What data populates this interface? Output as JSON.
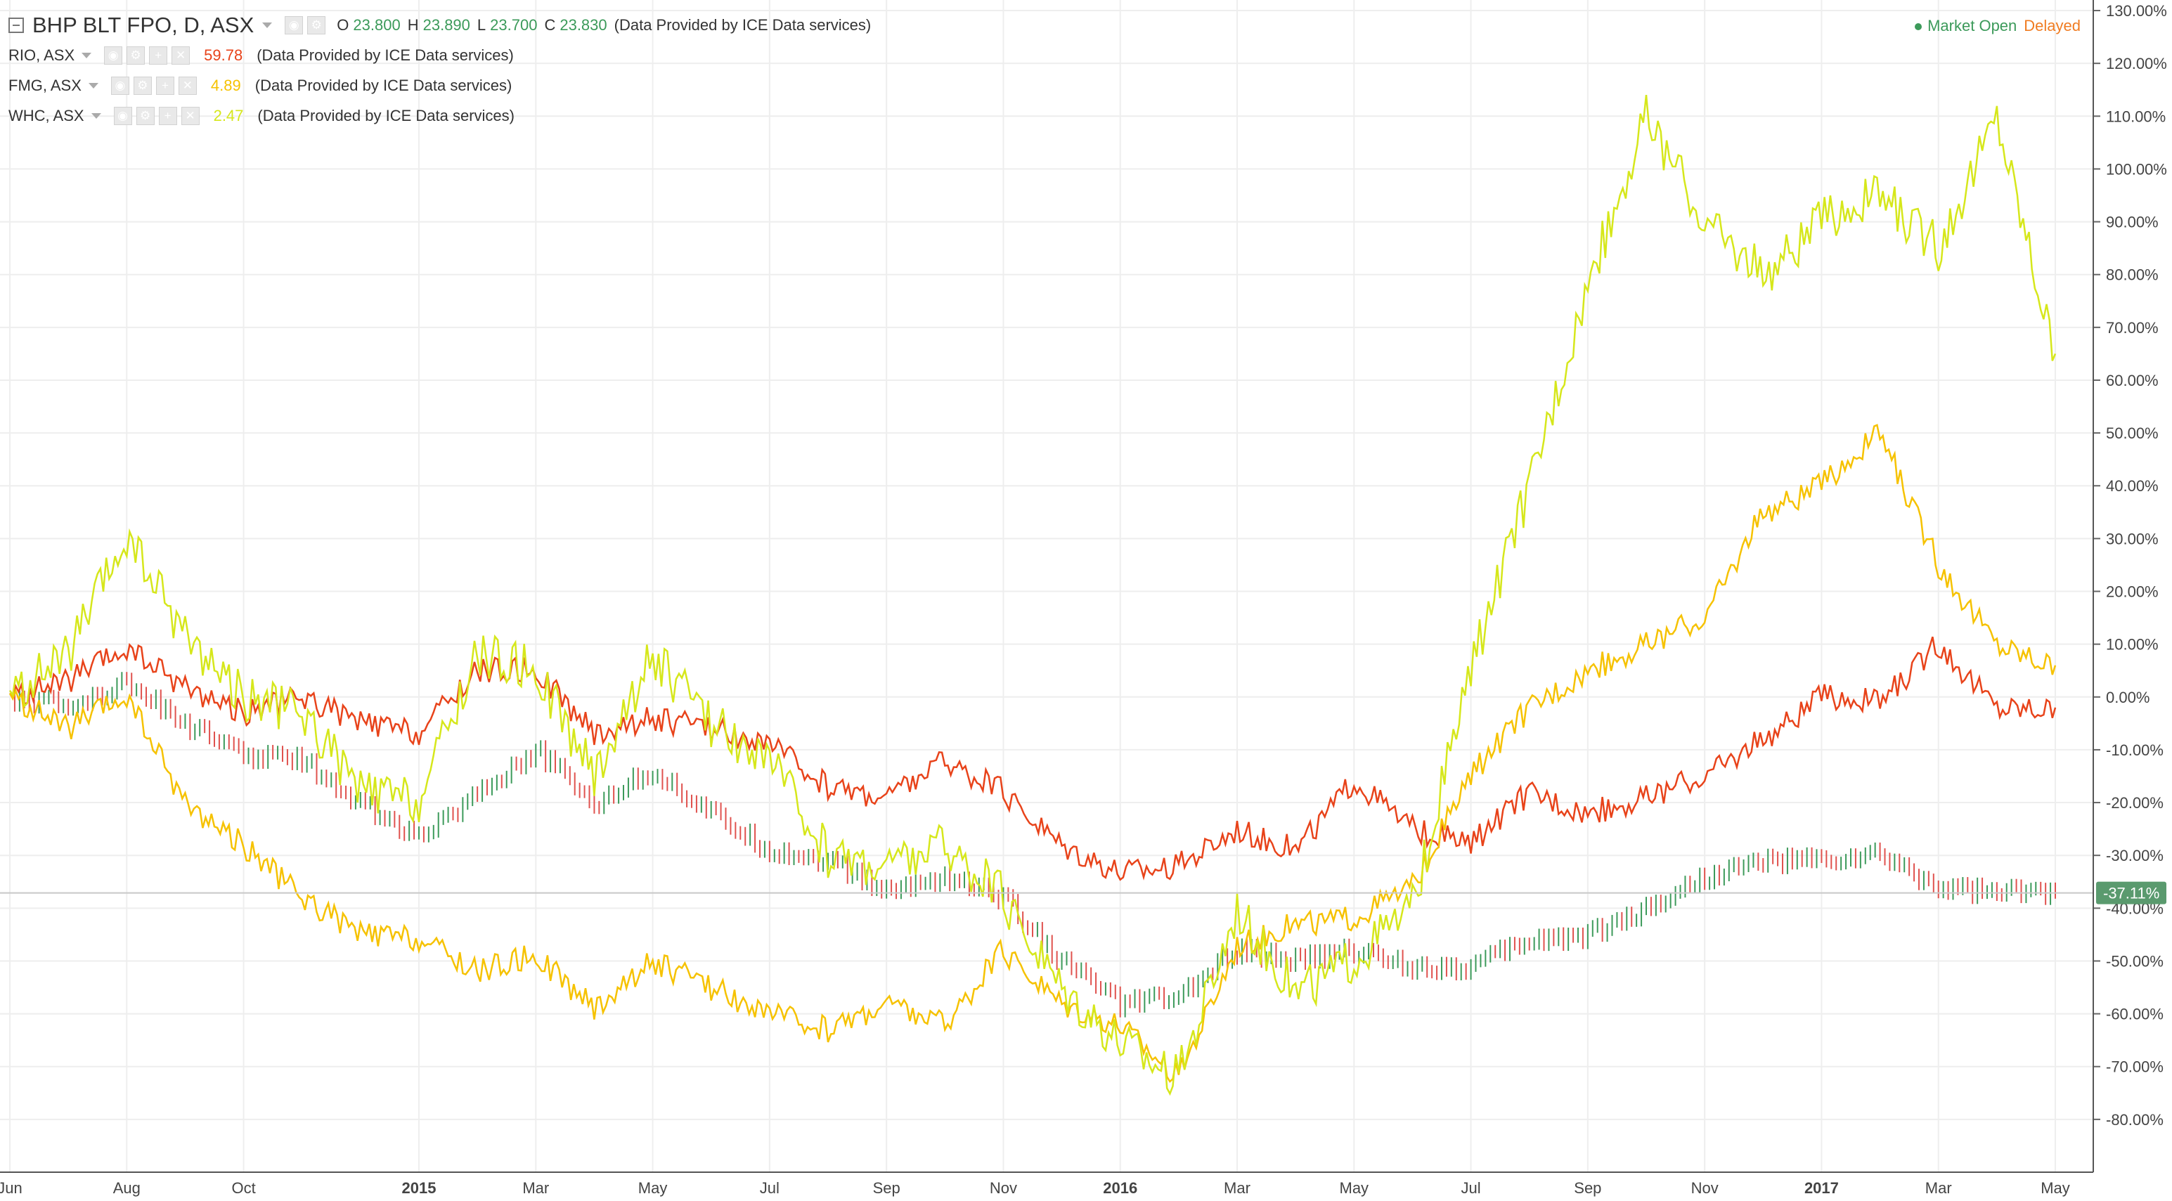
{
  "header": {
    "main_symbol": "BHP BLT FPO, D, ASX",
    "ohlc": [
      {
        "key": "O",
        "value": "23.800"
      },
      {
        "key": "H",
        "value": "23.890"
      },
      {
        "key": "L",
        "value": "23.700"
      },
      {
        "key": "C",
        "value": "23.830"
      }
    ],
    "provider": "(Data Provided by ICE Data services)"
  },
  "comparisons": [
    {
      "symbol": "RIO, ASX",
      "price": "59.78",
      "color": "#e8431a",
      "provider": "(Data Provided by ICE Data services)"
    },
    {
      "symbol": "FMG, ASX",
      "price": "4.89",
      "color": "#f6c200",
      "provider": "(Data Provided by ICE Data services)"
    },
    {
      "symbol": "WHC, ASX",
      "price": "2.47",
      "color": "#d6e71b",
      "provider": "(Data Provided by ICE Data services)"
    }
  ],
  "status": {
    "market": "Market Open",
    "feed": "Delayed"
  },
  "price_badge": "-37.11%",
  "colors": {
    "up": "#3c9a5a",
    "down": "#e0524e",
    "rio": "#e8431a",
    "fmg": "#f6c200",
    "whc": "#d6e71b"
  },
  "chart_data": {
    "type": "line",
    "x_tick_labels": [
      "Jun",
      "Aug",
      "Oct",
      "2015",
      "Mar",
      "May",
      "Jul",
      "Sep",
      "Nov",
      "2016",
      "Mar",
      "May",
      "Jul",
      "Sep",
      "Nov",
      "2017",
      "Mar",
      "May"
    ],
    "x_ticks": [
      "2014-06",
      "2014-08",
      "2014-10",
      "2015-01",
      "2015-03",
      "2015-05",
      "2015-07",
      "2015-09",
      "2015-11",
      "2016-01",
      "2016-03",
      "2016-05",
      "2016-07",
      "2016-09",
      "2016-11",
      "2017-01",
      "2017-03",
      "2017-05"
    ],
    "y_tick_labels": [
      "130.00%",
      "120.00%",
      "110.00%",
      "100.00%",
      "90.00%",
      "80.00%",
      "70.00%",
      "60.00%",
      "50.00%",
      "40.00%",
      "30.00%",
      "20.00%",
      "10.00%",
      "0.00%",
      "-10.00%",
      "-20.00%",
      "-30.00%",
      "-40.00%",
      "-50.00%",
      "-60.00%",
      "-70.00%",
      "-80.00%"
    ],
    "y_ticks": [
      130,
      120,
      110,
      100,
      90,
      80,
      70,
      60,
      50,
      40,
      30,
      20,
      10,
      0,
      -10,
      -20,
      -30,
      -40,
      -50,
      -60,
      -70,
      -80
    ],
    "ylim": [
      -90,
      132
    ],
    "grid": true,
    "last_value": -37.11,
    "series": [
      {
        "name": "BHP BLT FPO, D, ASX",
        "style": "ohlc-bars",
        "x": [
          "2014-06",
          "2014-07",
          "2014-08",
          "2014-09",
          "2014-10",
          "2014-11",
          "2014-12",
          "2015-01",
          "2015-02",
          "2015-03",
          "2015-04",
          "2015-05",
          "2015-06",
          "2015-07",
          "2015-08",
          "2015-09",
          "2015-10",
          "2015-11",
          "2015-12",
          "2016-01",
          "2016-02",
          "2016-03",
          "2016-04",
          "2016-05",
          "2016-06",
          "2016-07",
          "2016-08",
          "2016-09",
          "2016-10",
          "2016-11",
          "2016-12",
          "2017-01",
          "2017-02",
          "2017-03",
          "2017-04",
          "2017-05"
        ],
        "values": [
          0,
          -2,
          3,
          -5,
          -11,
          -12,
          -20,
          -27,
          -18,
          -10,
          -20,
          -14,
          -22,
          -29,
          -31,
          -37,
          -34,
          -38,
          -50,
          -58,
          -57,
          -48,
          -50,
          -48,
          -51,
          -51,
          -46,
          -45,
          -40,
          -34,
          -31,
          -31,
          -30,
          -36,
          -37,
          -37
        ]
      },
      {
        "name": "RIO, ASX",
        "style": "line",
        "x": [
          "2014-06",
          "2014-07",
          "2014-08",
          "2014-09",
          "2014-10",
          "2014-11",
          "2014-12",
          "2015-01",
          "2015-02",
          "2015-03",
          "2015-04",
          "2015-05",
          "2015-06",
          "2015-07",
          "2015-08",
          "2015-09",
          "2015-10",
          "2015-11",
          "2015-12",
          "2016-01",
          "2016-02",
          "2016-03",
          "2016-04",
          "2016-05",
          "2016-06",
          "2016-07",
          "2016-08",
          "2016-09",
          "2016-10",
          "2016-11",
          "2016-12",
          "2017-01",
          "2017-02",
          "2017-03",
          "2017-04",
          "2017-05"
        ],
        "values": [
          0,
          3,
          9,
          2,
          -3,
          0,
          -5,
          -7,
          5,
          5,
          -7,
          -4,
          -6,
          -9,
          -17,
          -19,
          -12,
          -18,
          -28,
          -33,
          -32,
          -25,
          -29,
          -16,
          -25,
          -28,
          -18,
          -22,
          -19,
          -15,
          -8,
          0,
          -1,
          10,
          -2,
          -2
        ]
      },
      {
        "name": "FMG, ASX",
        "style": "line",
        "x": [
          "2014-06",
          "2014-07",
          "2014-08",
          "2014-09",
          "2014-10",
          "2014-11",
          "2014-12",
          "2015-01",
          "2015-02",
          "2015-03",
          "2015-04",
          "2015-05",
          "2015-06",
          "2015-07",
          "2015-08",
          "2015-09",
          "2015-10",
          "2015-11",
          "2015-12",
          "2016-01",
          "2016-02",
          "2016-03",
          "2016-04",
          "2016-05",
          "2016-06",
          "2016-07",
          "2016-08",
          "2016-09",
          "2016-10",
          "2016-11",
          "2016-12",
          "2017-01",
          "2017-02",
          "2017-03",
          "2017-04",
          "2017-05"
        ],
        "values": [
          0,
          -6,
          0,
          -20,
          -28,
          -38,
          -45,
          -46,
          -52,
          -49,
          -59,
          -50,
          -55,
          -60,
          -63,
          -58,
          -62,
          -48,
          -58,
          -62,
          -72,
          -47,
          -43,
          -42,
          -36,
          -15,
          -2,
          5,
          10,
          15,
          35,
          40,
          50,
          25,
          10,
          6
        ]
      },
      {
        "name": "WHC, ASX",
        "style": "line",
        "x": [
          "2014-06",
          "2014-07",
          "2014-08",
          "2014-09",
          "2014-10",
          "2014-11",
          "2014-12",
          "2015-01",
          "2015-02",
          "2015-03",
          "2015-04",
          "2015-05",
          "2015-06",
          "2015-07",
          "2015-08",
          "2015-09",
          "2015-10",
          "2015-11",
          "2015-12",
          "2016-01",
          "2016-02",
          "2016-03",
          "2016-04",
          "2016-05",
          "2016-06",
          "2016-07",
          "2016-08",
          "2016-09",
          "2016-10",
          "2016-11",
          "2016-12",
          "2017-01",
          "2017-02",
          "2017-03",
          "2017-04",
          "2017-05"
        ],
        "values": [
          0,
          8,
          30,
          12,
          0,
          -3,
          -18,
          -20,
          8,
          5,
          -15,
          8,
          -5,
          -12,
          -30,
          -32,
          -28,
          -38,
          -55,
          -65,
          -72,
          -40,
          -56,
          -50,
          -40,
          5,
          40,
          78,
          110,
          90,
          80,
          90,
          95,
          85,
          110,
          65
        ]
      }
    ]
  }
}
